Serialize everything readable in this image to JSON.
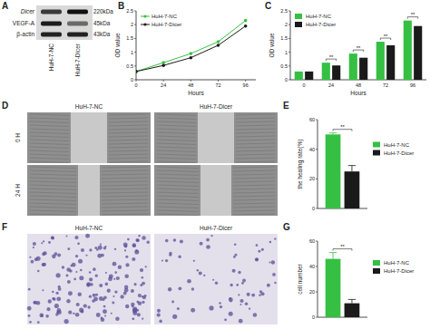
{
  "blot": {
    "panel": "A",
    "proteins": [
      "Dicer",
      "VEGF-A",
      "β-actin"
    ],
    "sizes": [
      "220kDa",
      "45kDa",
      "43kDa"
    ],
    "lanes": [
      "HuH-7-NC",
      "HuH-7-Dicer"
    ]
  },
  "chart_data": [
    {
      "panel": "B",
      "type": "line",
      "x_label": "Hours",
      "y_label": "OD value",
      "x": [
        0,
        24,
        48,
        72,
        96
      ],
      "xlim": [
        0,
        105
      ],
      "xticks": [
        0,
        24,
        48,
        72,
        96
      ],
      "ylim": [
        0,
        2.5
      ],
      "yticks": [
        0,
        0.5,
        1,
        1.5,
        2,
        2.5
      ],
      "grid": false,
      "legend": "upper left",
      "marker": "circle",
      "series": [
        {
          "name": "HuH-7-NC",
          "color": "#35c043",
          "values": [
            0.3,
            0.62,
            0.95,
            1.38,
            2.15
          ]
        },
        {
          "name": "HuH-7-Dicer",
          "color": "#1a1a1a",
          "values": [
            0.3,
            0.52,
            0.8,
            1.25,
            1.95
          ]
        }
      ]
    },
    {
      "panel": "C",
      "type": "bar",
      "x_label": "Hours",
      "y_label": "OD value",
      "categories": [
        "0",
        "24",
        "48",
        "72",
        "96"
      ],
      "ylim": [
        0,
        2.5
      ],
      "yticks": [
        0,
        0.5,
        1,
        1.5,
        2,
        2.5
      ],
      "grid": false,
      "legend": "upper left",
      "annotations": [
        null,
        "**",
        "**",
        "**",
        "**"
      ],
      "series": [
        {
          "name": "HuH-7-NC",
          "color": "#35c043",
          "values": [
            0.3,
            0.62,
            0.95,
            1.38,
            2.15
          ]
        },
        {
          "name": "HuH-7-Dicer",
          "color": "#1a1a1a",
          "values": [
            0.3,
            0.52,
            0.8,
            1.25,
            1.95
          ]
        }
      ]
    },
    {
      "panel": "E",
      "type": "bar",
      "y_label": "the healing rate(%)",
      "categories": [
        null
      ],
      "ylim": [
        0,
        60
      ],
      "yticks": [
        0,
        20,
        40,
        60
      ],
      "grid": false,
      "legend": "right",
      "annotations": [
        "**"
      ],
      "series": [
        {
          "name": "HuH-7-NC",
          "color": "#35c043",
          "values": [
            50
          ],
          "errors": [
            1
          ]
        },
        {
          "name": "HuH-7-Dicer",
          "color": "#1a1a1a",
          "values": [
            25
          ],
          "errors": [
            4
          ]
        }
      ]
    },
    {
      "panel": "G",
      "type": "bar",
      "y_label": "cell number",
      "categories": [
        null
      ],
      "ylim": [
        0,
        60
      ],
      "yticks": [
        0,
        20,
        40,
        60
      ],
      "grid": false,
      "legend": "right",
      "annotations": [
        "**"
      ],
      "series": [
        {
          "name": "HuH-7-NC",
          "color": "#35c043",
          "values": [
            46
          ],
          "errors": [
            5
          ]
        },
        {
          "name": "HuH-7-Dicer",
          "color": "#1a1a1a",
          "values": [
            11
          ],
          "errors": [
            3
          ]
        }
      ]
    }
  ],
  "wound": {
    "panel": "D",
    "columns": [
      "HuH-7-NC",
      "HuH-7-Dicer"
    ],
    "rows": [
      "0 H",
      "24 H"
    ]
  },
  "transwell": {
    "panel": "F",
    "columns": [
      "HuH-7-NC",
      "HuH-7-Dicer"
    ]
  }
}
